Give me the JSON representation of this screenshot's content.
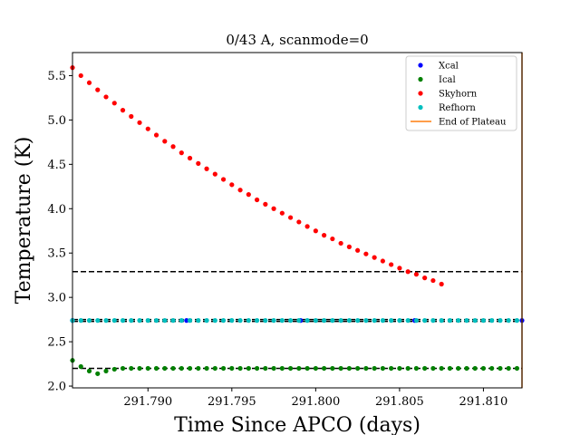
{
  "chart_data": {
    "type": "scatter",
    "title": "0/43 A, scanmode=0",
    "xlabel": "Time Since APCO (days)",
    "ylabel": "Temperature (K)",
    "xlim": [
      291.7855,
      291.8123
    ],
    "ylim": [
      1.98,
      5.76
    ],
    "x_ticks": [
      291.79,
      291.795,
      291.8,
      291.805,
      291.81
    ],
    "x_tick_labels": [
      "291.790",
      "291.795",
      "291.800",
      "291.805",
      "291.810"
    ],
    "y_ticks": [
      2.0,
      2.5,
      3.0,
      3.5,
      4.0,
      4.5,
      5.0,
      5.5
    ],
    "y_tick_labels": [
      "2.0",
      "2.5",
      "3.0",
      "3.5",
      "4.0",
      "4.5",
      "5.0",
      "5.5"
    ],
    "grid": false,
    "legend_placement": "top-right",
    "colors": {
      "xcal": "#0000ff",
      "ical": "#008000",
      "skyhorn": "#ff0000",
      "refhorn": "#00bfbf",
      "end_of_plateau": "#ff7f0e",
      "reference_line": "#000000"
    },
    "series": [
      {
        "name": "Xcal",
        "color": "#0000ff",
        "x": [
          291.7855,
          291.7923,
          291.7991,
          291.8059,
          291.8123
        ],
        "y": [
          2.74,
          2.74,
          2.74,
          2.74,
          2.74
        ]
      },
      {
        "name": "Ical",
        "color": "#008000",
        "x_start": 291.7855,
        "x_step": 0.0005,
        "y": [
          2.29,
          2.22,
          2.17,
          2.14,
          2.17,
          2.19,
          2.2,
          2.2,
          2.2,
          2.2,
          2.2,
          2.2,
          2.2,
          2.2,
          2.2,
          2.2,
          2.2,
          2.2,
          2.2,
          2.2,
          2.2,
          2.2,
          2.2,
          2.2,
          2.2,
          2.2,
          2.2,
          2.2,
          2.2,
          2.2,
          2.2,
          2.2,
          2.2,
          2.2,
          2.2,
          2.2,
          2.2,
          2.2,
          2.2,
          2.2,
          2.2,
          2.2,
          2.2,
          2.2,
          2.2,
          2.2,
          2.2,
          2.2,
          2.2,
          2.2,
          2.2,
          2.2,
          2.2,
          2.2
        ]
      },
      {
        "name": "Skyhorn",
        "color": "#ff0000",
        "x_start": 291.7855,
        "x_step": 0.0005,
        "y": [
          5.59,
          5.5,
          5.42,
          5.34,
          5.26,
          5.19,
          5.11,
          5.04,
          4.97,
          4.9,
          4.83,
          4.76,
          4.7,
          4.63,
          4.57,
          4.51,
          4.45,
          4.39,
          4.33,
          4.27,
          4.21,
          4.16,
          4.1,
          4.05,
          4.0,
          3.95,
          3.9,
          3.85,
          3.8,
          3.75,
          3.7,
          3.66,
          3.61,
          3.57,
          3.53,
          3.49,
          3.45,
          3.41,
          3.37,
          3.33,
          3.29,
          3.26,
          3.22,
          3.19,
          3.15
        ]
      },
      {
        "name": "Refhorn",
        "color": "#00bfbf",
        "x_start": 291.7855,
        "x_step": 0.0005,
        "y": [
          2.74,
          2.74,
          2.74,
          2.74,
          2.74,
          2.74,
          2.74,
          2.74,
          2.74,
          2.74,
          2.74,
          2.74,
          2.74,
          2.74,
          2.74,
          2.74,
          2.74,
          2.74,
          2.74,
          2.74,
          2.74,
          2.74,
          2.74,
          2.74,
          2.74,
          2.74,
          2.74,
          2.74,
          2.74,
          2.74,
          2.74,
          2.74,
          2.74,
          2.74,
          2.74,
          2.74,
          2.74,
          2.74,
          2.74,
          2.74,
          2.74,
          2.74,
          2.74,
          2.74,
          2.74,
          2.74,
          2.74,
          2.74,
          2.74,
          2.74,
          2.74,
          2.74,
          2.74,
          2.74
        ]
      },
      {
        "name": "End of Plateau",
        "color": "#ff7f0e",
        "style": "vertical-line",
        "x": 291.8123
      }
    ],
    "reference_lines": [
      {
        "y": 3.29,
        "style": "dashed"
      },
      {
        "y": 2.75,
        "style": "dashed"
      },
      {
        "y": 2.73,
        "style": "dashed"
      },
      {
        "y": 2.2,
        "style": "dashed"
      }
    ]
  }
}
